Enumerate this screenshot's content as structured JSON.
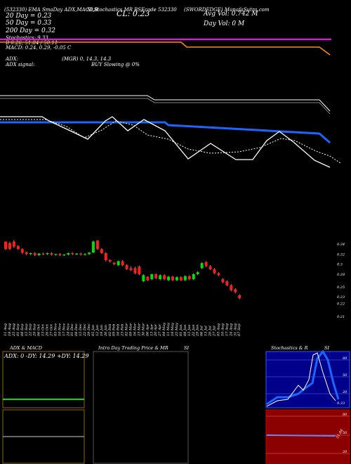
{
  "header": {
    "line1": "(532330) EMA SmaDay ADX,MACD,B",
    "line1b": "SI,Stochastics MR",
    "line1c": "BSEcode 532330",
    "line1d": "(SWORDEDGE) MunafaSutra.com",
    "cl": "CL: 0.23",
    "avg_vol": "Avg Vol: 0.742  M",
    "day_vol": "Day Vol: 0  M",
    "ma20": "20  Day = 0.23",
    "ma50": "50  Day = 0.33",
    "ma200": "200  Day = 0.32",
    "stoch": "Stochastics: 9.33",
    "bb": "B 0.26, 51.84 / 50.11",
    "macd": "MACD: 0.24, 0.29, -0.05 C",
    "adx": "ADX:",
    "adx_vals": "(MGR) 0, 14.3, 14.3",
    "adx_signal": "ADX  signal:",
    "buy_slowing": "BUY Slowing @ 0%"
  },
  "price_axis": [
    "0.34",
    "0.32",
    "0.3",
    "0.28",
    "0.25",
    "0.23",
    "0.22"
  ],
  "price_axis_low": "0.21",
  "dates": [
    "11 Aug",
    "18 Aug",
    "25 Aug",
    "01 Sep",
    "08 Sep",
    "15 Sep",
    "22 Sep",
    "29 Sep",
    "06 Oct",
    "13 Oct",
    "20 Oct",
    "27 Oct",
    "03 Nov",
    "10 Nov",
    "17 Nov",
    "24 Nov",
    "01 Dec",
    "08 Dec",
    "15 Dec",
    "22 Dec",
    "29 Dec",
    "05 Jan",
    "12 Jan",
    "19 Jan",
    "26 Jan",
    "02 Feb",
    "09 Feb",
    "16 Feb",
    "23 Feb",
    "02 Mar",
    "09 Mar",
    "16 Mar",
    "23 Mar",
    "30 Mar",
    "06 Apr",
    "13 Apr",
    "20 Apr",
    "27 Apr",
    "04 May",
    "11 May",
    "18 May",
    "25 May",
    "01 Jun",
    "08 Jun",
    "15 Jun",
    "22 Jun",
    "29 Jun",
    "06 Jul",
    "13 Jul",
    "20 Jul",
    "27 Jul",
    "03 Aug",
    "10 Aug",
    "17 Aug",
    "24 Aug",
    "31 Aug",
    "07 Sep"
  ],
  "panels": {
    "adx_title": "ADX  & MACD",
    "adx_box": "ADX: 0   -DY: 14.29  +DY: 14.29",
    "intraday_title": "Intra  Day Trading Price  & MR",
    "si_label": "SI",
    "stoch_title": "Stochastics & R",
    "si_label2": "SI",
    "stoch_axis": [
      "80",
      "50",
      "20"
    ],
    "stoch_val": "9.33",
    "rsi_axis": [
      "80",
      "50",
      "20"
    ],
    "rsi_val": "51.84"
  },
  "colors": {
    "up": "#00dd00",
    "down": "#ff1e1e",
    "ema_blue": "#1a66ff",
    "ma_orange": "#ff8c00",
    "magenta": "#ff00ff"
  },
  "chart_data": {
    "type": "candlestick",
    "title": "(532330) EMA SmaDay ADX,MACD,BSI,Stochastics MR",
    "ylim": [
      0.21,
      0.35
    ],
    "candles": [
      {
        "o": 0.345,
        "c": 0.33,
        "h": 0.345,
        "l": 0.328
      },
      {
        "o": 0.342,
        "c": 0.33,
        "h": 0.345,
        "l": 0.328
      },
      {
        "o": 0.345,
        "c": 0.335,
        "h": 0.348,
        "l": 0.332
      },
      {
        "o": 0.336,
        "c": 0.33,
        "h": 0.338,
        "l": 0.328
      },
      {
        "o": 0.33,
        "c": 0.323,
        "h": 0.332,
        "l": 0.32
      },
      {
        "o": 0.324,
        "c": 0.32,
        "h": 0.325,
        "l": 0.318
      },
      {
        "o": 0.32,
        "c": 0.322,
        "h": 0.323,
        "l": 0.318
      },
      {
        "o": 0.322,
        "c": 0.318,
        "h": 0.324,
        "l": 0.316
      },
      {
        "o": 0.318,
        "c": 0.321,
        "h": 0.322,
        "l": 0.316
      },
      {
        "o": 0.321,
        "c": 0.32,
        "h": 0.323,
        "l": 0.318
      },
      {
        "o": 0.32,
        "c": 0.322,
        "h": 0.323,
        "l": 0.318
      },
      {
        "o": 0.322,
        "c": 0.319,
        "h": 0.324,
        "l": 0.317
      },
      {
        "o": 0.319,
        "c": 0.32,
        "h": 0.321,
        "l": 0.317
      },
      {
        "o": 0.32,
        "c": 0.318,
        "h": 0.322,
        "l": 0.316
      },
      {
        "o": 0.318,
        "c": 0.319,
        "h": 0.32,
        "l": 0.316
      },
      {
        "o": 0.319,
        "c": 0.322,
        "h": 0.323,
        "l": 0.317
      },
      {
        "o": 0.322,
        "c": 0.32,
        "h": 0.324,
        "l": 0.318
      },
      {
        "o": 0.32,
        "c": 0.321,
        "h": 0.322,
        "l": 0.318
      },
      {
        "o": 0.321,
        "c": 0.319,
        "h": 0.323,
        "l": 0.317
      },
      {
        "o": 0.319,
        "c": 0.32,
        "h": 0.322,
        "l": 0.317
      },
      {
        "o": 0.32,
        "c": 0.323,
        "h": 0.324,
        "l": 0.318
      },
      {
        "o": 0.323,
        "c": 0.345,
        "h": 0.347,
        "l": 0.322
      },
      {
        "o": 0.347,
        "c": 0.33,
        "h": 0.348,
        "l": 0.328
      },
      {
        "o": 0.33,
        "c": 0.322,
        "h": 0.332,
        "l": 0.32
      },
      {
        "o": 0.322,
        "c": 0.308,
        "h": 0.324,
        "l": 0.305
      },
      {
        "o": 0.308,
        "c": 0.305,
        "h": 0.31,
        "l": 0.303
      },
      {
        "o": 0.303,
        "c": 0.3,
        "h": 0.304,
        "l": 0.298
      },
      {
        "o": 0.298,
        "c": 0.306,
        "h": 0.307,
        "l": 0.296
      },
      {
        "o": 0.306,
        "c": 0.298,
        "h": 0.308,
        "l": 0.296
      },
      {
        "o": 0.298,
        "c": 0.29,
        "h": 0.3,
        "l": 0.288
      },
      {
        "o": 0.292,
        "c": 0.288,
        "h": 0.296,
        "l": 0.286
      },
      {
        "o": 0.292,
        "c": 0.282,
        "h": 0.295,
        "l": 0.28
      },
      {
        "o": 0.295,
        "c": 0.28,
        "h": 0.297,
        "l": 0.278
      },
      {
        "o": 0.266,
        "c": 0.278,
        "h": 0.28,
        "l": 0.264
      },
      {
        "o": 0.275,
        "c": 0.268,
        "h": 0.276,
        "l": 0.266
      },
      {
        "o": 0.27,
        "c": 0.28,
        "h": 0.281,
        "l": 0.268
      },
      {
        "o": 0.28,
        "c": 0.272,
        "h": 0.282,
        "l": 0.27
      },
      {
        "o": 0.27,
        "c": 0.278,
        "h": 0.28,
        "l": 0.268
      },
      {
        "o": 0.278,
        "c": 0.27,
        "h": 0.28,
        "l": 0.268
      },
      {
        "o": 0.268,
        "c": 0.275,
        "h": 0.277,
        "l": 0.266
      },
      {
        "o": 0.275,
        "c": 0.268,
        "h": 0.277,
        "l": 0.266
      },
      {
        "o": 0.268,
        "c": 0.274,
        "h": 0.276,
        "l": 0.266
      },
      {
        "o": 0.274,
        "c": 0.268,
        "h": 0.276,
        "l": 0.266
      },
      {
        "o": 0.268,
        "c": 0.276,
        "h": 0.278,
        "l": 0.266
      },
      {
        "o": 0.276,
        "c": 0.27,
        "h": 0.278,
        "l": 0.268
      },
      {
        "o": 0.27,
        "c": 0.28,
        "h": 0.282,
        "l": 0.268
      },
      {
        "o": 0.28,
        "c": 0.284,
        "h": 0.286,
        "l": 0.278
      },
      {
        "o": 0.292,
        "c": 0.302,
        "h": 0.304,
        "l": 0.29
      },
      {
        "o": 0.304,
        "c": 0.296,
        "h": 0.306,
        "l": 0.294
      },
      {
        "o": 0.296,
        "c": 0.29,
        "h": 0.298,
        "l": 0.288
      },
      {
        "o": 0.29,
        "c": 0.282,
        "h": 0.292,
        "l": 0.28
      },
      {
        "o": 0.282,
        "c": 0.278,
        "h": 0.284,
        "l": 0.276
      },
      {
        "o": 0.27,
        "c": 0.264,
        "h": 0.272,
        "l": 0.262
      },
      {
        "o": 0.266,
        "c": 0.258,
        "h": 0.268,
        "l": 0.256
      },
      {
        "o": 0.258,
        "c": 0.248,
        "h": 0.26,
        "l": 0.246
      },
      {
        "o": 0.25,
        "c": 0.244,
        "h": 0.252,
        "l": 0.242
      },
      {
        "o": 0.238,
        "c": 0.232,
        "h": 0.24,
        "l": 0.23
      }
    ]
  }
}
